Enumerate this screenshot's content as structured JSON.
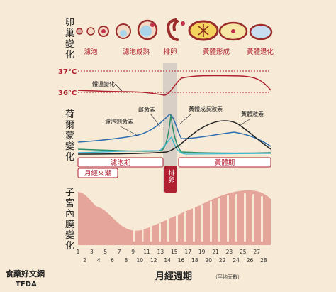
{
  "labels": {
    "ovary": [
      "卵",
      "巢",
      "變",
      "化"
    ],
    "hormone": [
      "荷",
      "爾",
      "蒙",
      "變",
      "化"
    ],
    "uterus": [
      "子",
      "宮",
      "內",
      "膜",
      "變",
      "化"
    ]
  },
  "stages": [
    "濾泡",
    "濾泡成熟",
    "排卵",
    "黃體形成",
    "黃體退化"
  ],
  "temperature": {
    "high": "37°C",
    "low": "36°C",
    "curve_label": "體溫變化"
  },
  "hormones": {
    "lh": "黃體成長激素",
    "fsh": "濾泡刺激素",
    "estrogen": "雌激素",
    "progesterone": "黃體激素"
  },
  "phases": {
    "follicular": "濾泡期",
    "menstruation": "月經來潮",
    "ovulation": "排卵",
    "luteal": "黃體期"
  },
  "axis": {
    "title": "月經週期",
    "subtitle": "（平均天數）",
    "days_top": [
      "1",
      "3",
      "5",
      "7",
      "9",
      "11",
      "13",
      "15",
      "17",
      "19",
      "21",
      "23",
      "25",
      "27"
    ],
    "days_bottom": [
      "2",
      "4",
      "6",
      "8",
      "10",
      "12",
      "14",
      "16",
      "18",
      "20",
      "22",
      "24",
      "26",
      "28"
    ]
  },
  "logo": {
    "line1": "食藥好文網",
    "line2": "TFDA"
  },
  "colors": {
    "accent": "#b02030",
    "lh": "#2a8f6a",
    "fsh": "#3ab8d0",
    "estrogen": "#2f6fb0",
    "progesterone": "#222222",
    "endometrium": "#e5a59a"
  }
}
